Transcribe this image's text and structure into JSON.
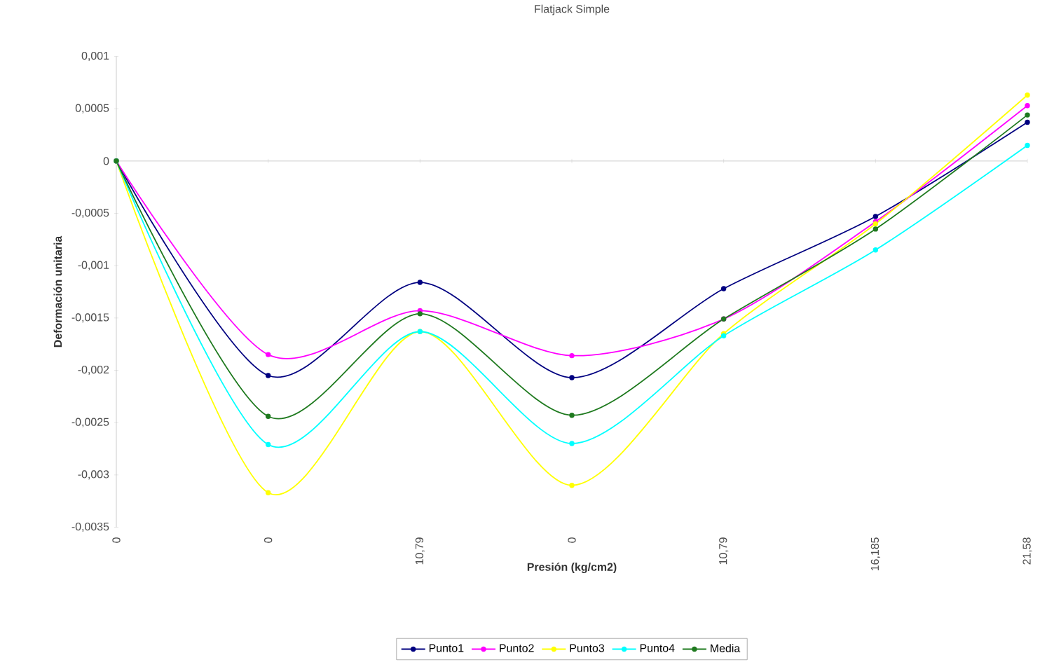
{
  "chart_data": {
    "type": "line",
    "title": "Flatjack Simple",
    "xlabel": "Presión (kg/cm2)",
    "ylabel": "Deformación unitaria",
    "categories": [
      "0",
      "0",
      "10,79",
      "0",
      "10,79",
      "16,185",
      "21,58"
    ],
    "series": [
      {
        "name": "Punto1",
        "color": "#000080",
        "values": [
          0,
          -0.00205,
          -0.00116,
          -0.00207,
          -0.00122,
          -0.00053,
          0.00037
        ]
      },
      {
        "name": "Punto2",
        "color": "#ff00ff",
        "values": [
          0,
          -0.00185,
          -0.00143,
          -0.00186,
          -0.00151,
          -0.00058,
          0.00053
        ]
      },
      {
        "name": "Punto3",
        "color": "#ffff00",
        "values": [
          0,
          -0.00317,
          -0.00163,
          -0.0031,
          -0.00165,
          -0.0006,
          0.00063
        ]
      },
      {
        "name": "Punto4",
        "color": "#00ffff",
        "values": [
          0,
          -0.00271,
          -0.00163,
          -0.0027,
          -0.00167,
          -0.00085,
          0.00015
        ]
      },
      {
        "name": "Media",
        "color": "#1f7a1f",
        "values": [
          0,
          -0.00244,
          -0.00146,
          -0.00243,
          -0.00151,
          -0.00065,
          0.00044
        ]
      }
    ],
    "ylim": [
      -0.0035,
      0.001
    ],
    "yticks": [
      {
        "value": -0.0035,
        "label": "-0,0035"
      },
      {
        "value": -0.003,
        "label": "-0,003"
      },
      {
        "value": -0.0025,
        "label": "-0,0025"
      },
      {
        "value": -0.002,
        "label": "-0,002"
      },
      {
        "value": -0.0015,
        "label": "-0,0015"
      },
      {
        "value": -0.001,
        "label": "-0,001"
      },
      {
        "value": -0.0005,
        "label": "-0,0005"
      },
      0,
      {
        "value": 0.0005,
        "label": "0,0005"
      },
      {
        "value": 0.001,
        "label": "0,001"
      }
    ],
    "legend": "bottom",
    "marker": "circle",
    "line_style": "solid"
  }
}
